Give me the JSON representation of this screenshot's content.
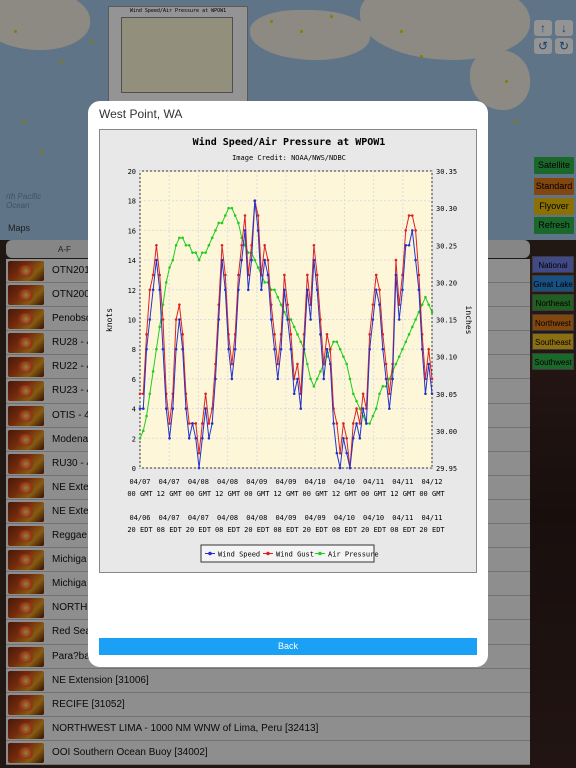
{
  "map": {
    "ocean_label": "rth Pacific\nOcean",
    "maps_logo": "Maps",
    "thumb_title": "Wind Speed/Air Pressure at WPOW1"
  },
  "nav": {
    "up": "↑",
    "down": "↓",
    "rotate_left": "↺",
    "rotate_right": "↻"
  },
  "map_types": [
    {
      "label": "Satellite",
      "color": "#2fb34a"
    },
    {
      "label": "Standard",
      "color": "#e07a1a"
    },
    {
      "label": "Flyover",
      "color": "#f0c20a"
    },
    {
      "label": "Refresh",
      "color": "#2fb34a"
    }
  ],
  "regions": [
    {
      "label": "National",
      "color": "#7080e8"
    },
    {
      "label": "Great Lake",
      "color": "#2a8ae0"
    },
    {
      "label": "Northeast",
      "color": "#3aa23a"
    },
    {
      "label": "Northwest",
      "color": "#e07a1a"
    },
    {
      "label": "Southeast",
      "color": "#f0c020"
    },
    {
      "label": "Southwest",
      "color": "#2fb34a"
    }
  ],
  "list": {
    "header_tab": "A-F",
    "items": [
      "OTN201",
      "OTN200",
      "Penobsc",
      "RU28 - 4",
      "RU22 - 4",
      "RU23 - 4",
      "OTIS - 4",
      "Modena",
      "RU30 - 4",
      "NE Exten",
      "NE Exten",
      "Reggae",
      "Michiga",
      "Michiga",
      "NORTHE",
      "Red Sea",
      "Para?ba",
      "NE Extension [31006]",
      "RECIFE [31052]",
      "NORTHWEST LIMA - 1000 NM WNW of Lima, Peru [32413]",
      "OOI Southern Ocean Buoy [34002]"
    ]
  },
  "modal": {
    "title": "West Point, WA",
    "back_label": "Back"
  },
  "chart_data": {
    "type": "line",
    "title": "Wind Speed/Air Pressure at WPOW1",
    "subtitle": "Image Credit: NOAA/NWS/NDBC",
    "ylabel": "knots",
    "y2label": "inches",
    "ylim": [
      0,
      20
    ],
    "y2lim": [
      29.95,
      30.35
    ],
    "y_ticks": [
      0,
      2,
      4,
      6,
      8,
      10,
      12,
      14,
      16,
      18,
      20
    ],
    "y2_ticks": [
      "29.95",
      "30.00",
      "30.05",
      "30.10",
      "30.15",
      "30.20",
      "30.25",
      "30.30",
      "30.35"
    ],
    "x_ticks_gmt": [
      [
        "04/07",
        "00 GMT"
      ],
      [
        "04/07",
        "12 GMT"
      ],
      [
        "04/08",
        "00 GMT"
      ],
      [
        "04/08",
        "12 GMT"
      ],
      [
        "04/09",
        "00 GMT"
      ],
      [
        "04/09",
        "12 GMT"
      ],
      [
        "04/10",
        "00 GMT"
      ],
      [
        "04/10",
        "12 GMT"
      ],
      [
        "04/11",
        "00 GMT"
      ],
      [
        "04/11",
        "12 GMT"
      ],
      [
        "04/12",
        "00 GMT"
      ]
    ],
    "x_ticks_edt": [
      [
        "04/06",
        "20 EDT"
      ],
      [
        "04/07",
        "08 EDT"
      ],
      [
        "04/07",
        "20 EDT"
      ],
      [
        "04/08",
        "08 EDT"
      ],
      [
        "04/08",
        "20 EDT"
      ],
      [
        "04/09",
        "08 EDT"
      ],
      [
        "04/09",
        "20 EDT"
      ],
      [
        "04/10",
        "08 EDT"
      ],
      [
        "04/10",
        "20 EDT"
      ],
      [
        "04/11",
        "08 EDT"
      ],
      [
        "04/11",
        "20 EDT"
      ]
    ],
    "grid": true,
    "legend_position": "bottom",
    "series": [
      {
        "name": "Wind Speed",
        "color": "#2233cc",
        "axis": "left",
        "values": [
          4,
          4,
          8,
          10,
          12,
          14,
          12,
          8,
          4,
          2,
          4,
          8,
          10,
          8,
          4,
          2,
          3,
          2,
          0,
          2,
          4,
          2,
          3,
          6,
          10,
          14,
          12,
          8,
          6,
          8,
          12,
          14,
          16,
          12,
          14,
          18,
          16,
          12,
          14,
          13,
          10,
          8,
          6,
          8,
          12,
          10,
          8,
          5,
          6,
          4,
          8,
          12,
          10,
          14,
          12,
          9,
          6,
          8,
          7,
          3,
          1,
          0,
          2,
          1,
          0,
          2,
          3,
          2,
          4,
          3,
          8,
          10,
          12,
          11,
          8,
          6,
          4,
          6,
          13,
          10,
          12,
          15,
          15,
          16,
          14,
          12,
          8,
          5,
          7,
          5
        ]
      },
      {
        "name": "Wind Gust",
        "color": "#dd2222",
        "axis": "left",
        "values": [
          5,
          5,
          9,
          12,
          13,
          15,
          13,
          10,
          5,
          3,
          5,
          10,
          11,
          9,
          5,
          3,
          3,
          3,
          1,
          3,
          5,
          3,
          4,
          7,
          11,
          15,
          13,
          9,
          7,
          9,
          13,
          15,
          17,
          13,
          15,
          18,
          17,
          13,
          15,
          14,
          11,
          9,
          7,
          9,
          13,
          11,
          9,
          6,
          7,
          5,
          9,
          13,
          11,
          15,
          13,
          10,
          7,
          9,
          8,
          4,
          3,
          1,
          3,
          2,
          0,
          3,
          4,
          3,
          5,
          4,
          9,
          11,
          13,
          12,
          9,
          7,
          5,
          7,
          14,
          11,
          13,
          16,
          17,
          17,
          16,
          13,
          9,
          6,
          8,
          6
        ]
      },
      {
        "name": "Air Pressure",
        "color": "#22cc22",
        "axis": "right",
        "values": [
          29.99,
          30.0,
          30.02,
          30.05,
          30.08,
          30.11,
          30.14,
          30.17,
          30.2,
          30.22,
          30.23,
          30.25,
          30.26,
          30.26,
          30.25,
          30.25,
          30.24,
          30.24,
          30.23,
          30.24,
          30.24,
          30.25,
          30.26,
          30.27,
          30.28,
          30.28,
          30.29,
          30.3,
          30.3,
          30.29,
          30.28,
          30.26,
          30.25,
          30.24,
          30.24,
          30.23,
          30.22,
          30.21,
          30.2,
          30.2,
          30.19,
          30.19,
          30.18,
          30.17,
          30.16,
          30.15,
          30.15,
          30.14,
          30.13,
          30.12,
          30.11,
          30.09,
          30.07,
          30.06,
          30.07,
          30.08,
          30.09,
          30.1,
          30.11,
          30.12,
          30.12,
          30.11,
          30.1,
          30.09,
          30.07,
          30.05,
          30.04,
          30.03,
          30.02,
          30.01,
          30.01,
          30.02,
          30.03,
          30.05,
          30.06,
          30.06,
          30.07,
          30.08,
          30.09,
          30.1,
          30.11,
          30.12,
          30.13,
          30.14,
          30.15,
          30.16,
          30.17,
          30.18,
          30.17,
          30.16
        ]
      }
    ]
  }
}
